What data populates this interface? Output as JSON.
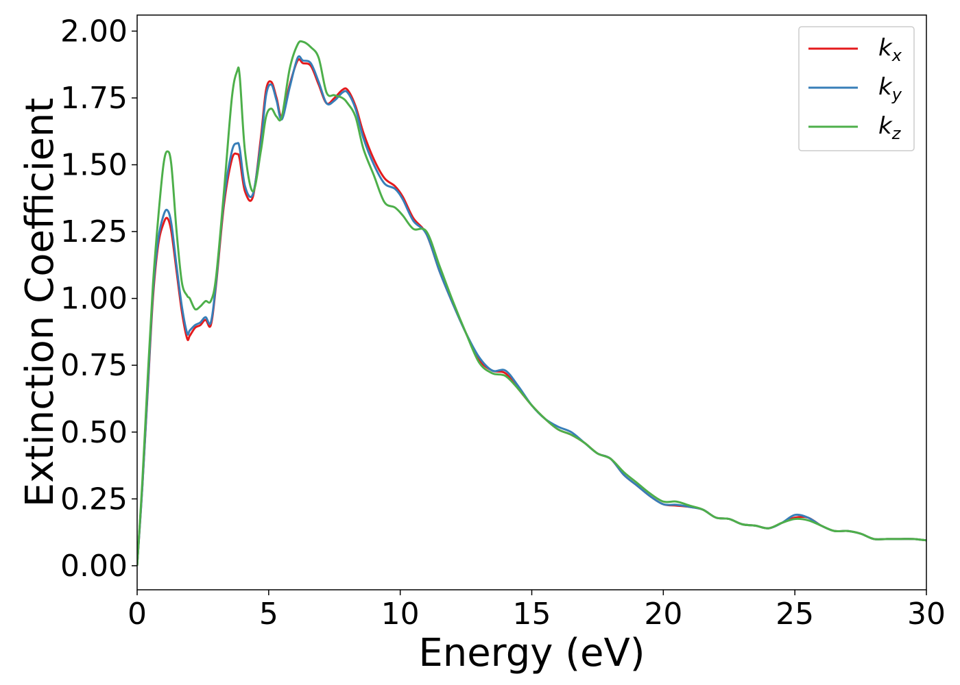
{
  "chart_data": {
    "type": "line",
    "xlabel": "Energy (eV)",
    "ylabel": "Extinction Coefficient",
    "xlim": [
      0,
      30
    ],
    "ylim": [
      -0.09,
      2.06
    ],
    "xticks": [
      0,
      5,
      10,
      15,
      20,
      25,
      30
    ],
    "xtick_labels": [
      "0",
      "5",
      "10",
      "15",
      "20",
      "25",
      "30"
    ],
    "yticks": [
      0.0,
      0.25,
      0.5,
      0.75,
      1.0,
      1.25,
      1.5,
      1.75,
      2.0
    ],
    "ytick_labels": [
      "0.00",
      "0.25",
      "0.50",
      "0.75",
      "1.00",
      "1.25",
      "1.50",
      "1.75",
      "2.00"
    ],
    "grid": false,
    "legend_position": "top-right",
    "series": [
      {
        "name": "kx",
        "label_base": "k",
        "label_sub": "x",
        "color": "#e41a1c",
        "x": [
          0,
          0.2,
          0.4,
          0.6,
          0.8,
          1.0,
          1.15,
          1.3,
          1.5,
          1.7,
          1.9,
          2.0,
          2.2,
          2.4,
          2.6,
          2.8,
          3.0,
          3.3,
          3.6,
          3.8,
          3.9,
          4.1,
          4.4,
          4.7,
          4.9,
          5.1,
          5.3,
          5.5,
          5.8,
          6.1,
          6.3,
          6.6,
          6.9,
          7.2,
          7.5,
          7.8,
          8.0,
          8.3,
          8.6,
          9.0,
          9.4,
          9.8,
          10.1,
          10.5,
          11.0,
          11.5,
          12.0,
          12.5,
          13.0,
          13.5,
          14.0,
          14.5,
          15.0,
          15.5,
          16.0,
          16.5,
          17.0,
          17.5,
          18.0,
          18.5,
          19.0,
          19.5,
          20.0,
          20.5,
          21.0,
          21.5,
          22.0,
          22.5,
          23.0,
          23.5,
          24.0,
          24.5,
          25.0,
          25.5,
          26.0,
          26.5,
          27.0,
          27.5,
          28.0,
          28.5,
          29.0,
          29.5,
          30.0
        ],
        "y": [
          0.0,
          0.3,
          0.65,
          1.0,
          1.2,
          1.28,
          1.3,
          1.25,
          1.1,
          0.95,
          0.85,
          0.86,
          0.89,
          0.9,
          0.92,
          0.9,
          1.05,
          1.35,
          1.52,
          1.54,
          1.52,
          1.4,
          1.38,
          1.6,
          1.78,
          1.81,
          1.75,
          1.68,
          1.8,
          1.89,
          1.88,
          1.87,
          1.8,
          1.73,
          1.75,
          1.78,
          1.78,
          1.72,
          1.62,
          1.52,
          1.45,
          1.42,
          1.38,
          1.3,
          1.24,
          1.1,
          0.98,
          0.87,
          0.77,
          0.73,
          0.72,
          0.66,
          0.6,
          0.55,
          0.51,
          0.49,
          0.46,
          0.42,
          0.4,
          0.34,
          0.3,
          0.26,
          0.23,
          0.225,
          0.22,
          0.21,
          0.18,
          0.175,
          0.155,
          0.15,
          0.14,
          0.16,
          0.18,
          0.18,
          0.15,
          0.13,
          0.13,
          0.12,
          0.1,
          0.1,
          0.1,
          0.1,
          0.095
        ]
      },
      {
        "name": "ky",
        "label_base": "k",
        "label_sub": "y",
        "color": "#377eb8",
        "x": [
          0,
          0.2,
          0.4,
          0.6,
          0.8,
          1.0,
          1.15,
          1.3,
          1.5,
          1.7,
          1.9,
          2.0,
          2.2,
          2.4,
          2.6,
          2.8,
          3.0,
          3.3,
          3.6,
          3.8,
          3.9,
          4.1,
          4.4,
          4.7,
          4.9,
          5.1,
          5.3,
          5.5,
          5.8,
          6.1,
          6.3,
          6.6,
          6.9,
          7.2,
          7.5,
          7.8,
          8.0,
          8.3,
          8.6,
          9.0,
          9.4,
          9.8,
          10.1,
          10.5,
          11.0,
          11.5,
          12.0,
          12.5,
          13.0,
          13.5,
          14.0,
          14.5,
          15.0,
          15.5,
          16.0,
          16.5,
          17.0,
          17.5,
          18.0,
          18.5,
          19.0,
          19.5,
          20.0,
          20.5,
          21.0,
          21.5,
          22.0,
          22.5,
          23.0,
          23.5,
          24.0,
          24.5,
          25.0,
          25.5,
          26.0,
          26.5,
          27.0,
          27.5,
          28.0,
          28.5,
          29.0,
          29.5,
          30.0
        ],
        "y": [
          0.0,
          0.3,
          0.66,
          1.02,
          1.22,
          1.31,
          1.33,
          1.28,
          1.12,
          0.97,
          0.87,
          0.88,
          0.9,
          0.91,
          0.93,
          0.91,
          1.06,
          1.37,
          1.55,
          1.58,
          1.56,
          1.42,
          1.39,
          1.58,
          1.76,
          1.8,
          1.74,
          1.67,
          1.79,
          1.9,
          1.89,
          1.88,
          1.81,
          1.73,
          1.74,
          1.77,
          1.77,
          1.71,
          1.6,
          1.5,
          1.43,
          1.41,
          1.37,
          1.29,
          1.24,
          1.1,
          0.98,
          0.87,
          0.78,
          0.73,
          0.73,
          0.67,
          0.6,
          0.55,
          0.52,
          0.5,
          0.46,
          0.42,
          0.4,
          0.34,
          0.3,
          0.26,
          0.23,
          0.228,
          0.22,
          0.21,
          0.18,
          0.175,
          0.155,
          0.15,
          0.14,
          0.16,
          0.19,
          0.18,
          0.15,
          0.13,
          0.13,
          0.12,
          0.1,
          0.1,
          0.1,
          0.1,
          0.095
        ]
      },
      {
        "name": "kz",
        "label_base": "k",
        "label_sub": "z",
        "color": "#4daf4a",
        "x": [
          0,
          0.2,
          0.4,
          0.6,
          0.8,
          1.0,
          1.15,
          1.3,
          1.5,
          1.7,
          1.9,
          2.0,
          2.2,
          2.4,
          2.6,
          2.8,
          3.0,
          3.3,
          3.6,
          3.8,
          3.9,
          4.1,
          4.4,
          4.7,
          4.9,
          5.1,
          5.3,
          5.5,
          5.8,
          6.1,
          6.3,
          6.6,
          6.9,
          7.2,
          7.5,
          7.8,
          8.0,
          8.3,
          8.6,
          9.0,
          9.4,
          9.8,
          10.1,
          10.5,
          11.0,
          11.5,
          12.0,
          12.5,
          13.0,
          13.5,
          14.0,
          14.5,
          15.0,
          15.5,
          16.0,
          16.5,
          17.0,
          17.5,
          18.0,
          18.5,
          19.0,
          19.5,
          20.0,
          20.5,
          21.0,
          21.5,
          22.0,
          22.5,
          23.0,
          23.5,
          24.0,
          24.5,
          25.0,
          25.5,
          26.0,
          26.5,
          27.0,
          27.5,
          28.0,
          28.5,
          29.0,
          29.5,
          30.0
        ],
        "y": [
          0.0,
          0.32,
          0.7,
          1.05,
          1.3,
          1.5,
          1.55,
          1.5,
          1.25,
          1.06,
          1.01,
          1.0,
          0.96,
          0.97,
          0.99,
          0.99,
          1.08,
          1.4,
          1.75,
          1.85,
          1.83,
          1.55,
          1.4,
          1.55,
          1.68,
          1.71,
          1.68,
          1.68,
          1.86,
          1.95,
          1.96,
          1.94,
          1.9,
          1.77,
          1.76,
          1.75,
          1.73,
          1.68,
          1.56,
          1.46,
          1.36,
          1.34,
          1.31,
          1.26,
          1.25,
          1.12,
          0.99,
          0.87,
          0.76,
          0.72,
          0.71,
          0.66,
          0.6,
          0.55,
          0.51,
          0.49,
          0.46,
          0.42,
          0.4,
          0.35,
          0.31,
          0.27,
          0.24,
          0.24,
          0.225,
          0.21,
          0.18,
          0.175,
          0.155,
          0.15,
          0.14,
          0.16,
          0.175,
          0.17,
          0.15,
          0.13,
          0.13,
          0.12,
          0.1,
          0.1,
          0.1,
          0.1,
          0.095
        ]
      }
    ]
  }
}
